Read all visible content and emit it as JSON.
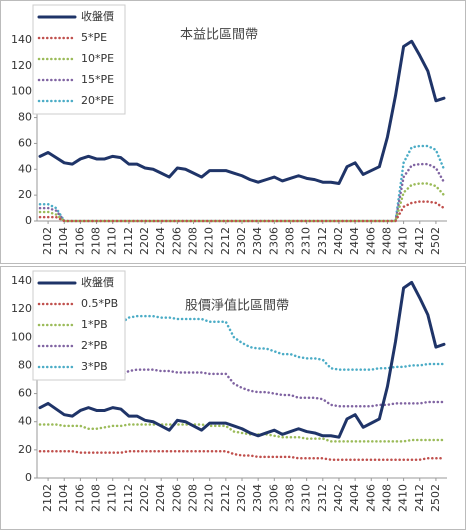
{
  "chart_data": [
    {
      "type": "line",
      "title": "本益比區間帶",
      "legend": "top-left",
      "categories": [
        null,
        "2102",
        null,
        "2104",
        null,
        "2106",
        null,
        "2108",
        null,
        "2110",
        null,
        "2112",
        null,
        "2202",
        null,
        "2204",
        null,
        "2206",
        null,
        "2208",
        null,
        "2210",
        null,
        "2212",
        null,
        "2302",
        null,
        "2304",
        null,
        "2306",
        null,
        "2308",
        null,
        "2310",
        null,
        "2312",
        null,
        "2402",
        null,
        "2404",
        null,
        "2406",
        null,
        "2408",
        null,
        "2410",
        null,
        "2412",
        null,
        "2502",
        null
      ],
      "ylim": [
        0,
        140
      ],
      "yticks": [
        0,
        20,
        40,
        60,
        80,
        100,
        120,
        140
      ],
      "series": [
        {
          "name": "收盤價",
          "color": "#1f3468",
          "values": [
            50,
            53,
            49,
            45,
            44,
            48,
            50,
            48,
            48,
            50,
            49,
            44,
            44,
            41,
            40,
            37,
            34,
            41,
            40,
            37,
            34,
            39,
            39,
            39,
            37,
            35,
            32,
            30,
            32,
            34,
            31,
            33,
            35,
            33,
            32,
            30,
            30,
            29,
            42,
            45,
            36,
            39,
            42,
            65,
            97,
            135,
            139,
            128,
            116,
            93,
            95
          ]
        },
        {
          "name": "5*PE",
          "color": "#c0504d",
          "values": [
            3,
            3,
            3,
            0,
            0,
            0,
            0,
            0,
            0,
            0,
            0,
            0,
            0,
            0,
            0,
            0,
            0,
            0,
            0,
            0,
            0,
            0,
            0,
            0,
            0,
            0,
            0,
            0,
            0,
            0,
            0,
            0,
            0,
            0,
            0,
            0,
            0,
            0,
            0,
            0,
            0,
            0,
            0,
            0,
            0,
            11,
            14,
            15,
            15,
            14,
            10
          ]
        },
        {
          "name": "10*PE",
          "color": "#9bbb59",
          "values": [
            7,
            7,
            5,
            0,
            0,
            0,
            0,
            0,
            0,
            0,
            0,
            0,
            0,
            0,
            0,
            0,
            0,
            0,
            0,
            0,
            0,
            0,
            0,
            0,
            0,
            0,
            0,
            0,
            0,
            0,
            0,
            0,
            0,
            0,
            0,
            0,
            0,
            0,
            0,
            0,
            0,
            0,
            0,
            0,
            0,
            22,
            28,
            29,
            29,
            27,
            20
          ]
        },
        {
          "name": "15*PE",
          "color": "#8064a2",
          "values": [
            10,
            10,
            8,
            0,
            0,
            0,
            0,
            0,
            0,
            0,
            0,
            0,
            0,
            0,
            0,
            0,
            0,
            0,
            0,
            0,
            0,
            0,
            0,
            0,
            0,
            0,
            0,
            0,
            0,
            0,
            0,
            0,
            0,
            0,
            0,
            0,
            0,
            0,
            0,
            0,
            0,
            0,
            0,
            0,
            0,
            34,
            43,
            44,
            44,
            41,
            30
          ]
        },
        {
          "name": "20*PE",
          "color": "#4bacc6",
          "values": [
            13,
            13,
            10,
            0,
            0,
            0,
            0,
            0,
            0,
            0,
            0,
            0,
            0,
            0,
            0,
            0,
            0,
            0,
            0,
            0,
            0,
            0,
            0,
            0,
            0,
            0,
            0,
            0,
            0,
            0,
            0,
            0,
            0,
            0,
            0,
            0,
            0,
            0,
            0,
            0,
            0,
            0,
            0,
            0,
            0,
            45,
            57,
            58,
            58,
            55,
            40
          ]
        }
      ]
    },
    {
      "type": "line",
      "title": "股價淨值比區間帶",
      "legend": "top-left",
      "categories": [
        null,
        "2102",
        null,
        "2104",
        null,
        "2106",
        null,
        "2108",
        null,
        "2110",
        null,
        "2112",
        null,
        "2202",
        null,
        "2204",
        null,
        "2206",
        null,
        "2208",
        null,
        "2210",
        null,
        "2212",
        null,
        "2302",
        null,
        "2304",
        null,
        "2306",
        null,
        "2308",
        null,
        "2310",
        null,
        "2312",
        null,
        "2402",
        null,
        "2404",
        null,
        "2406",
        null,
        "2408",
        null,
        "2410",
        null,
        "2412",
        null,
        "2502",
        null
      ],
      "ylim": [
        0,
        140
      ],
      "yticks": [
        0,
        20,
        40,
        60,
        80,
        100,
        120,
        140
      ],
      "series": [
        {
          "name": "收盤價",
          "color": "#1f3468",
          "values": [
            50,
            53,
            49,
            45,
            44,
            48,
            50,
            48,
            48,
            50,
            49,
            44,
            44,
            41,
            40,
            37,
            34,
            41,
            40,
            37,
            34,
            39,
            39,
            39,
            37,
            35,
            32,
            30,
            32,
            34,
            31,
            33,
            35,
            33,
            32,
            30,
            30,
            29,
            42,
            45,
            36,
            39,
            42,
            65,
            97,
            135,
            139,
            128,
            116,
            93,
            95
          ]
        },
        {
          "name": "0.5*PB",
          "color": "#c0504d",
          "values": [
            19,
            19,
            19,
            19,
            19,
            18,
            18,
            18,
            18,
            18,
            18,
            19,
            19,
            19,
            19,
            19,
            19,
            19,
            19,
            19,
            19,
            19,
            19,
            19,
            17,
            16,
            16,
            15,
            15,
            15,
            15,
            15,
            14,
            14,
            14,
            14,
            13,
            13,
            13,
            13,
            13,
            13,
            13,
            13,
            13,
            13,
            13,
            13,
            14,
            14,
            14
          ]
        },
        {
          "name": "1*PB",
          "color": "#9bbb59",
          "values": [
            38,
            38,
            38,
            37,
            37,
            37,
            35,
            35,
            36,
            37,
            37,
            38,
            38,
            38,
            38,
            38,
            38,
            38,
            38,
            38,
            38,
            37,
            37,
            37,
            33,
            32,
            31,
            31,
            31,
            30,
            29,
            29,
            29,
            28,
            28,
            28,
            26,
            26,
            26,
            26,
            26,
            26,
            26,
            26,
            26,
            26,
            27,
            27,
            27,
            27,
            27
          ]
        },
        {
          "name": "2*PB",
          "color": "#8064a2",
          "values": [
            76,
            76,
            75,
            75,
            75,
            73,
            71,
            71,
            72,
            73,
            73,
            76,
            77,
            77,
            77,
            76,
            76,
            75,
            75,
            75,
            75,
            74,
            74,
            74,
            67,
            64,
            62,
            61,
            61,
            60,
            59,
            59,
            57,
            57,
            57,
            56,
            52,
            51,
            51,
            51,
            51,
            51,
            52,
            52,
            53,
            53,
            53,
            53,
            54,
            54,
            54
          ]
        },
        {
          "name": "3*PB",
          "color": "#4bacc6",
          "values": [
            114,
            114,
            113,
            112,
            112,
            110,
            106,
            106,
            108,
            110,
            110,
            114,
            115,
            115,
            115,
            114,
            114,
            113,
            113,
            113,
            113,
            111,
            111,
            111,
            100,
            96,
            93,
            92,
            92,
            90,
            88,
            88,
            86,
            85,
            85,
            84,
            78,
            77,
            77,
            77,
            77,
            77,
            78,
            78,
            79,
            79,
            80,
            80,
            81,
            81,
            81
          ]
        }
      ]
    }
  ]
}
